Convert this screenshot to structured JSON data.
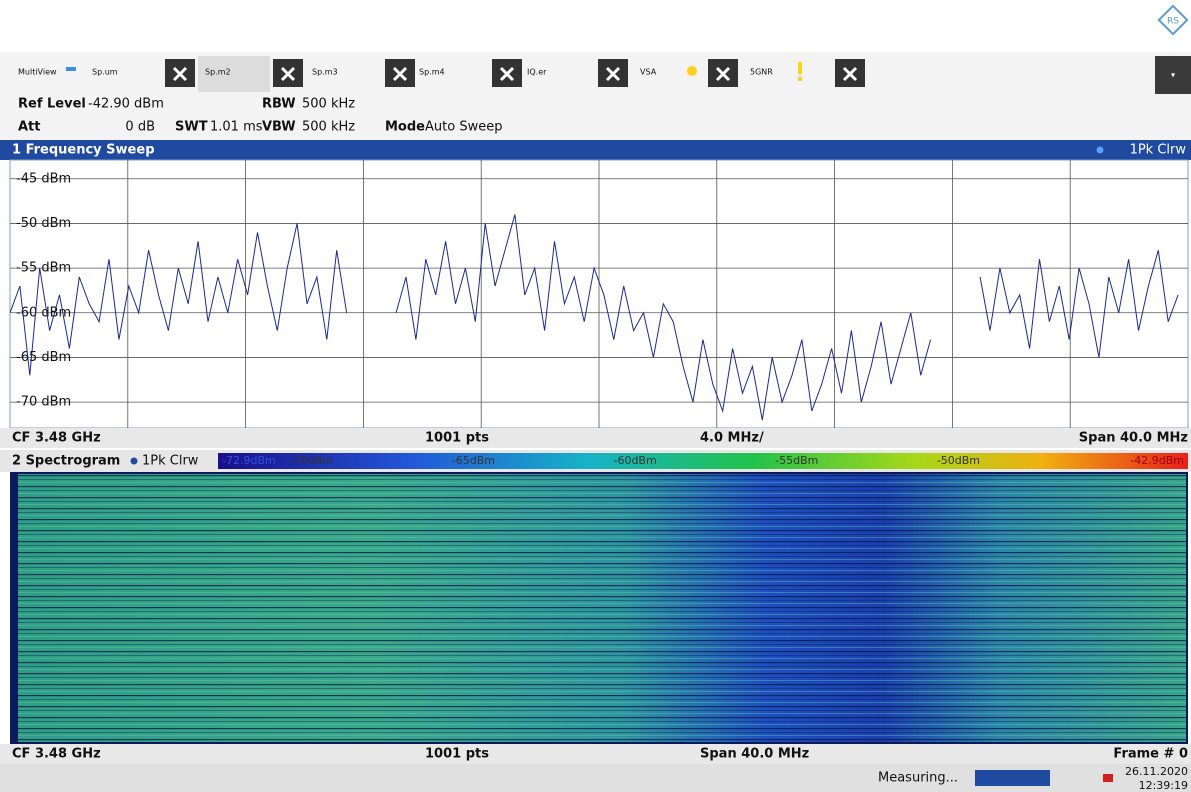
{
  "tabs": [
    "MultiView",
    "Sp.um",
    "Sp.m2",
    "Sp.m3",
    "Sp.m4",
    "IQ.er",
    "VSA",
    "5GNR"
  ],
  "settings": [
    {
      "label": "Ref Level",
      "value": "-42.90 dBm"
    },
    {
      "label": "RBW",
      "value": "500 kHz"
    },
    {
      "label": "Att",
      "value": "0 dB"
    },
    {
      "label": "SWT",
      "value": "1.01 ms"
    },
    {
      "label": "VBW",
      "value": "500 kHz"
    },
    {
      "label": "Mode",
      "value": "Auto Sweep"
    }
  ],
  "chart_data": {
    "type": "line",
    "title": "1 Frequency Sweep",
    "trace_label": "1Pk Clrw",
    "color": "#1a2a8c",
    "values": [
      -60,
      -57,
      -67,
      -55,
      -62,
      -58,
      -64,
      -56,
      -59,
      -61,
      -54,
      -63,
      -57,
      -60,
      -53,
      -58,
      -62,
      -55,
      -59,
      -52,
      -61,
      -56,
      -60,
      -54,
      -58,
      -51,
      -57,
      -62,
      -55,
      -50,
      -59,
      -56,
      -63,
      -53,
      -60,
      null,
      null,
      null,
      null,
      -60,
      -56,
      -63,
      -54,
      -58,
      -52,
      -59,
      -55,
      -61,
      -50,
      -57,
      -53,
      -49,
      -58,
      -55,
      -62,
      -52,
      -59,
      -56,
      -61,
      -55,
      -58,
      -63,
      -57,
      -62,
      -60,
      -65,
      -59,
      -61,
      -66,
      -70,
      -63,
      -68,
      -71,
      -64,
      -69,
      -66,
      -72,
      -65,
      -70,
      -67,
      -63,
      -71,
      -68,
      -64,
      -69,
      -62,
      -70,
      -66,
      -61,
      -68,
      -64,
      -60,
      -67,
      -63,
      null,
      null,
      null,
      null,
      -56,
      -62,
      -55,
      -60,
      -58,
      -64,
      -54,
      -61,
      -57,
      -63,
      -55,
      -59,
      -65,
      -56,
      -60,
      -54,
      -62,
      -57,
      -53,
      -61,
      -58,
      null
    ],
    "ylim": [
      -72.9,
      -42.9
    ],
    "yticks": [
      {
        "value": -45,
        "label": "-45 dBm"
      },
      {
        "value": -50,
        "label": "-50 dBm"
      },
      {
        "value": -55,
        "label": "-55 dBm"
      },
      {
        "value": -60,
        "label": "-60 dBm"
      },
      {
        "value": -65,
        "label": "-65 dBm"
      },
      {
        "value": -70,
        "label": "-70 dBm"
      }
    ],
    "grid": true,
    "footer": [
      "CF 3.48 GHz",
      "1001 pts",
      "4.0 MHz/",
      "Span 40.0 MHz"
    ]
  },
  "spectrogram": {
    "title": "2 Spectrogram",
    "trace_label": "1Pk Clrw",
    "colorbar": {
      "range": [
        -72.9,
        -42.9
      ],
      "ticks": [
        {
          "value": -72.9,
          "label": "-72.9dBm"
        },
        {
          "value": -70,
          "label": "-70dBm"
        },
        {
          "value": -65,
          "label": "-65dBm"
        },
        {
          "value": -60,
          "label": "-60dBm"
        },
        {
          "value": -55,
          "label": "-55dBm"
        },
        {
          "value": -50,
          "label": "-50dBm"
        },
        {
          "value": -42.9,
          "label": "-42.9dBm"
        }
      ]
    },
    "footer": [
      "CF 3.48 GHz",
      "1001 pts",
      "Span 40.0 MHz",
      "Frame # 0"
    ]
  },
  "status": {
    "state": "Measuring...",
    "date": "26.11.2020",
    "time": "12:39:19"
  }
}
